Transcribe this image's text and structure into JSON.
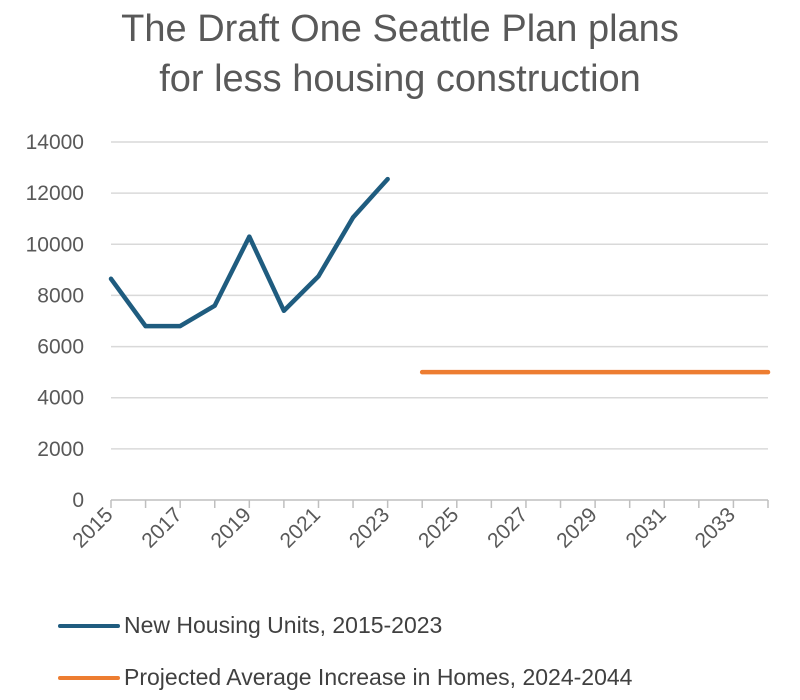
{
  "chart_data": {
    "type": "line",
    "title_lines": [
      "The Draft One Seattle Plan plans",
      "for less housing construction"
    ],
    "xlabel": "",
    "ylabel": "",
    "ylim": [
      0,
      14000
    ],
    "yticks": [
      "0",
      "2000",
      "4000",
      "6000",
      "8000",
      "10000",
      "12000",
      "14000"
    ],
    "xlim": [
      2015,
      2034
    ],
    "xticks": [
      "2015",
      "2017",
      "2019",
      "2021",
      "2023",
      "2025",
      "2027",
      "2029",
      "2031",
      "2033"
    ],
    "grid": true,
    "legend_position": "bottom",
    "series": [
      {
        "name": "New Housing Units, 2015-2023",
        "color": "#1F5C7F",
        "x": [
          2015,
          2016,
          2017,
          2018,
          2019,
          2020,
          2021,
          2022,
          2023
        ],
        "y": [
          8650,
          6800,
          6800,
          7600,
          10300,
          7400,
          8750,
          11050,
          12550
        ]
      },
      {
        "name": "Projected Average Increase in Homes, 2024-2044",
        "color": "#ED7D31",
        "x": [
          2024,
          2034
        ],
        "y": [
          5000,
          5000
        ]
      }
    ]
  }
}
